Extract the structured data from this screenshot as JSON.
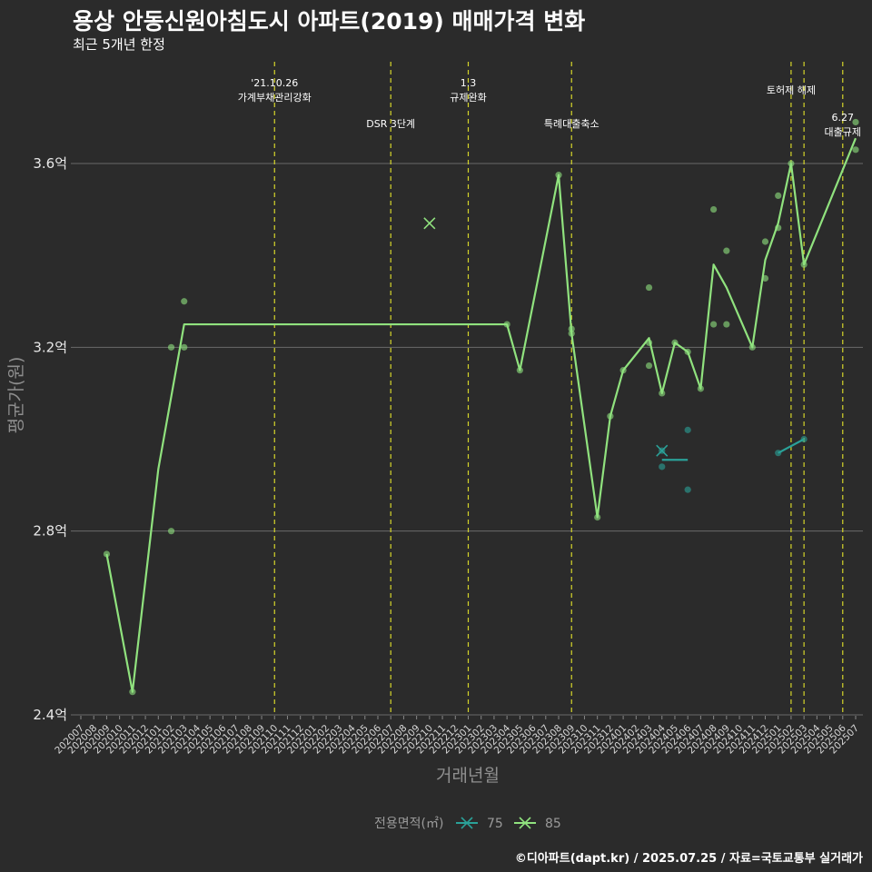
{
  "title": "용상 안동신원아침도시 아파트(2019) 매매가격 변화",
  "subtitle": "최근 5개년 한정",
  "credit": "©디아파트(dapt.kr) / 2025.07.25 / 자료=국토교통부 실거래가",
  "colors": {
    "background": "#2b2b2b",
    "series_75": "#2aa198",
    "series_85": "#90e27e",
    "event_line": "#d6d62a",
    "grid": "#6a6a6a"
  },
  "chart_data": {
    "type": "line",
    "title": "용상 안동신원아침도시 아파트(2019) 매매가격 변화",
    "xlabel": "거래년월",
    "ylabel": "평균가(원)",
    "ylim": [
      2.4,
      3.8
    ],
    "yticks": [
      {
        "value": 2.4,
        "label": "2.4억"
      },
      {
        "value": 2.8,
        "label": "2.8억"
      },
      {
        "value": 3.2,
        "label": "3.2억"
      },
      {
        "value": 3.6,
        "label": "3.6억"
      }
    ],
    "categories": [
      "202007",
      "202008",
      "202009",
      "202010",
      "202011",
      "202012",
      "202101",
      "202102",
      "202103",
      "202104",
      "202105",
      "202106",
      "202107",
      "202108",
      "202109",
      "202110",
      "202111",
      "202112",
      "202201",
      "202202",
      "202203",
      "202204",
      "202205",
      "202206",
      "202207",
      "202208",
      "202209",
      "202210",
      "202211",
      "202212",
      "202301",
      "202302",
      "202303",
      "202304",
      "202305",
      "202306",
      "202307",
      "202308",
      "202309",
      "202310",
      "202311",
      "202312",
      "202401",
      "202402",
      "202403",
      "202404",
      "202405",
      "202406",
      "202407",
      "202408",
      "202409",
      "202410",
      "202411",
      "202412",
      "202501",
      "202502",
      "202503",
      "202504",
      "202505",
      "202506",
      "202507"
    ],
    "legend_title": "전용면적(㎡)",
    "legend_position": "bottom",
    "series": [
      {
        "name": "75",
        "color": "#2aa198",
        "line": [
          [
            "202404",
            2.955
          ],
          [
            "202406",
            2.955
          ]
        ],
        "line2": [
          [
            "202501",
            2.97
          ],
          [
            "202503",
            3.0
          ]
        ],
        "points": [
          [
            "202404",
            2.975
          ],
          [
            "202404",
            2.94
          ],
          [
            "202406",
            3.02
          ],
          [
            "202406",
            2.89
          ],
          [
            "202501",
            2.97
          ],
          [
            "202503",
            3.0
          ]
        ],
        "cross": [
          [
            "202404",
            2.975
          ]
        ]
      },
      {
        "name": "85",
        "color": "#90e27e",
        "line": [
          [
            "202009",
            2.75
          ],
          [
            "202011",
            2.45
          ],
          [
            "202101",
            2.935
          ],
          [
            "202103",
            3.25
          ],
          [
            "202304",
            3.25
          ],
          [
            "202305",
            3.15
          ],
          [
            "202308",
            3.575
          ],
          [
            "202309",
            3.23
          ],
          [
            "202311",
            2.83
          ],
          [
            "202312",
            3.05
          ],
          [
            "202401",
            3.15
          ],
          [
            "202403",
            3.22
          ],
          [
            "202404",
            3.1
          ],
          [
            "202405",
            3.21
          ],
          [
            "202406",
            3.19
          ],
          [
            "202407",
            3.11
          ],
          [
            "202408",
            3.38
          ],
          [
            "202409",
            3.33
          ],
          [
            "202411",
            3.2
          ],
          [
            "202412",
            3.39
          ],
          [
            "202501",
            3.47
          ],
          [
            "202502",
            3.6
          ],
          [
            "202503",
            3.38
          ],
          [
            "202507",
            3.655
          ]
        ],
        "points": [
          [
            "202009",
            2.75
          ],
          [
            "202011",
            2.45
          ],
          [
            "202102",
            3.2
          ],
          [
            "202102",
            2.8
          ],
          [
            "202103",
            3.3
          ],
          [
            "202103",
            3.2
          ],
          [
            "202304",
            3.25
          ],
          [
            "202305",
            3.15
          ],
          [
            "202308",
            3.575
          ],
          [
            "202309",
            3.24
          ],
          [
            "202309",
            3.23
          ],
          [
            "202311",
            2.83
          ],
          [
            "202312",
            3.05
          ],
          [
            "202401",
            3.15
          ],
          [
            "202403",
            3.33
          ],
          [
            "202403",
            3.16
          ],
          [
            "202403",
            3.21
          ],
          [
            "202404",
            3.1
          ],
          [
            "202405",
            3.21
          ],
          [
            "202406",
            3.19
          ],
          [
            "202407",
            3.11
          ],
          [
            "202408",
            3.5
          ],
          [
            "202408",
            3.25
          ],
          [
            "202409",
            3.41
          ],
          [
            "202409",
            3.25
          ],
          [
            "202411",
            3.2
          ],
          [
            "202412",
            3.43
          ],
          [
            "202412",
            3.35
          ],
          [
            "202501",
            3.53
          ],
          [
            "202501",
            3.46
          ],
          [
            "202502",
            3.6
          ],
          [
            "202503",
            3.38
          ],
          [
            "202507",
            3.69
          ],
          [
            "202507",
            3.63
          ]
        ],
        "cross": [
          [
            "202210",
            3.47
          ]
        ]
      }
    ],
    "events": [
      {
        "month": "202110",
        "label1": "'21.10.26",
        "label2": "가계부채관리강화"
      },
      {
        "month": "202207",
        "label1": "DSR 3단계",
        "label2": ""
      },
      {
        "month": "202301",
        "label1": "1.3",
        "label2": "규제완화"
      },
      {
        "month": "202309",
        "label1": "특례대출축소",
        "label2": ""
      },
      {
        "month": "202502",
        "label1": "토허제 해제",
        "label2": ""
      },
      {
        "month": "202503",
        "label1": "",
        "label2": ""
      },
      {
        "month": "202506",
        "label1": "6.27",
        "label2": "대출규제"
      }
    ]
  }
}
